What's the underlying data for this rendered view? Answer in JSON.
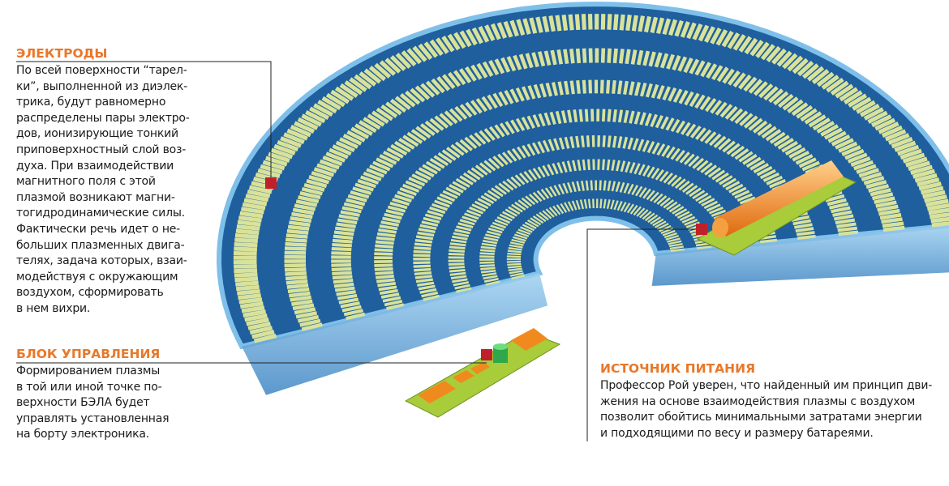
{
  "colors": {
    "heading": "#e8782a",
    "disk": "#1f5f9e",
    "electrode": "#d9e29a",
    "marker": "#c0202a",
    "battery": "#f08a1e",
    "board": "#a8cc3a"
  },
  "electrodes": {
    "title": "ЭЛЕКТРОДЫ",
    "text": "По всей поверхности “тарел-\nки”, выполненной из диэлек-\nтрика, будут равномерно\nраспределены пары электро-\nдов, ионизирующие тонкий\nприповерхностный слой воз-\nдуха. При взаимодействии\nмагнитного поля с этой\nплазмой возникают магни-\nтогидродинамические силы.\nФактически речь идет о не-\nбольших плазменных двига-\nтелях, задача которых, взаи-\nмодействуя с окружающим\nвоздухом, сформировать\nв нем вихри."
  },
  "control": {
    "title": "БЛОК УПРАВЛЕНИЯ",
    "text": "Формированием плазмы\nв той или иной точке по-\nверхности БЭЛА будет\nуправлять установленная\nна борту электроника."
  },
  "power": {
    "title": "ИСТОЧНИК ПИТАНИЯ",
    "text": "Профессор Рой уверен, что найденный им принцип дви-\nжения на основе взаимодействия плазмы с воздухом\nпозволит обойтись минимальными затратами энергии\nи подходящими по весу и размеру батареями."
  }
}
